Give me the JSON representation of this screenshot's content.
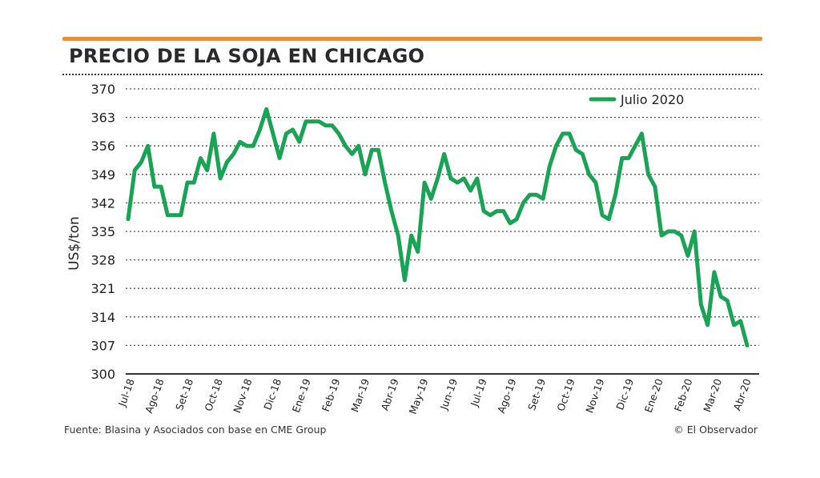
{
  "header": {
    "title": "PRECIO DE LA SOJA EN CHICAGO"
  },
  "footer": {
    "source": "Fuente: Blasina y Asociados con base en CME Group",
    "credit": "© El Observador"
  },
  "colors": {
    "accent_bar": "#e8913a",
    "series": "#1aa355"
  },
  "chart_data": {
    "type": "line",
    "title": "PRECIO DE LA SOJA EN CHICAGO",
    "xlabel": "",
    "ylabel": "US$/ton",
    "ylim": [
      300,
      370
    ],
    "yticks": [
      300,
      307,
      314,
      321,
      328,
      335,
      342,
      349,
      356,
      363,
      370
    ],
    "grid": "horizontal dotted",
    "legend": "top-right",
    "month_labels": [
      "Jul-18",
      "Ago-18",
      "Set-18",
      "Oct-18",
      "Nov-18",
      "Dic-18",
      "Ene-19",
      "Feb-19",
      "Mar-19",
      "Abr-19",
      "May-19",
      "Jun-19",
      "Jul-19",
      "Ago-19",
      "Set-19",
      "Oct-19",
      "Nov-19",
      "Dic-19",
      "Ene-20",
      "Feb-20",
      "Mar-20",
      "Abr-20"
    ],
    "series": [
      {
        "name": "Julio 2020",
        "values": [
          338,
          350,
          352,
          356,
          346,
          346,
          339,
          339,
          339,
          347,
          347,
          353,
          350,
          359,
          348,
          352,
          354,
          357,
          356,
          356,
          360,
          365,
          359,
          353,
          359,
          360,
          357,
          362,
          362,
          362,
          361,
          361,
          359,
          356,
          354,
          356,
          349,
          355,
          355,
          347,
          340,
          334,
          323,
          334,
          330,
          347,
          343,
          348,
          354,
          348,
          347,
          348,
          345,
          348,
          340,
          339,
          340,
          340,
          337,
          338,
          342,
          344,
          344,
          343,
          351,
          356,
          359,
          359,
          355,
          354,
          349,
          347,
          339,
          338,
          344,
          353,
          353,
          356,
          359,
          349,
          346,
          334,
          335,
          335,
          334,
          329,
          335,
          317,
          312,
          325,
          319,
          318,
          312,
          313,
          307
        ]
      }
    ]
  }
}
